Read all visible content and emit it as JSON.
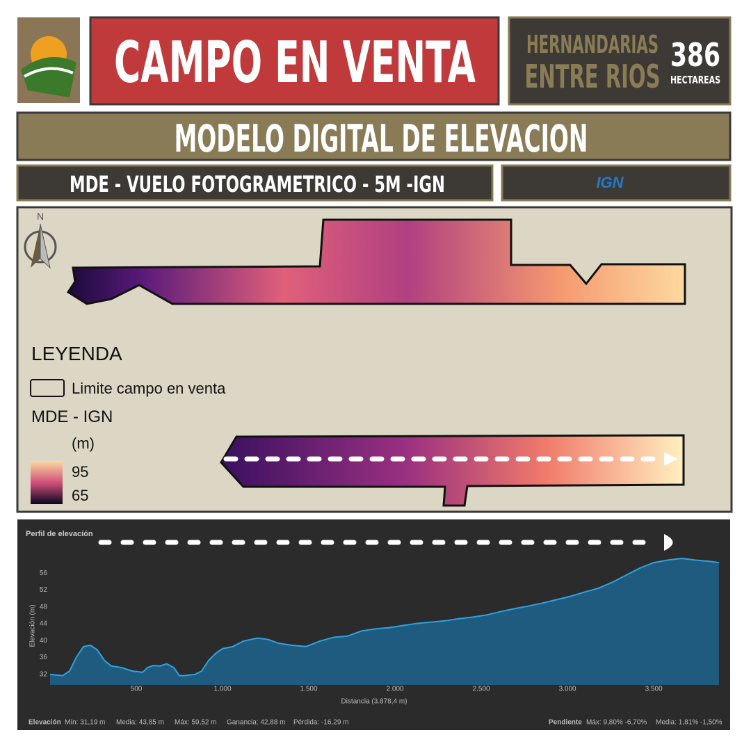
{
  "header": {
    "title": "CAMPO EN VENTA",
    "location_1": "HERNANDARIAS",
    "location_2": "ENTRE RIOS",
    "area": "386",
    "area_unit": "HECTAREAS"
  },
  "section": {
    "title": "MODELO DIGITAL DE ELEVACION",
    "source": "MDE - VUELO FOTOGRAMETRICO - 5M -IGN",
    "logo": "IGN"
  },
  "map": {
    "north": "N",
    "legend_title": "LEYENDA",
    "boundary_label": "Limite campo en venta",
    "layer": "MDE - IGN",
    "unit": "(m)",
    "scale_max": 95,
    "scale_min": 65
  },
  "chart_data": {
    "type": "area",
    "title": "Perfil de elevación",
    "x_label": "Distancia (3.878,4 m)",
    "y_label": "Elevación (m)",
    "x": [
      0,
      73,
      113,
      153,
      194,
      234,
      274,
      315,
      355,
      415,
      476,
      536,
      565,
      597,
      637,
      677,
      718,
      750,
      778,
      839,
      879,
      919,
      960,
      1000,
      1060,
      1121,
      1202,
      1262,
      1323,
      1403,
      1484,
      1565,
      1645,
      1726,
      1806,
      1887,
      1968,
      2048,
      2129,
      2210,
      2290,
      2371,
      2452,
      2532,
      2613,
      2694,
      2774,
      2855,
      2935,
      3016,
      3097,
      3177,
      3258,
      3339,
      3419,
      3500,
      3581,
      3661,
      3742,
      3823,
      3878
    ],
    "series": [
      {
        "name": "Elevación",
        "color": "#2ea3e0",
        "values": [
          32.0,
          31.7,
          32.8,
          36.1,
          38.6,
          38.9,
          37.8,
          35.3,
          34.0,
          33.6,
          32.8,
          32.5,
          33.6,
          34.1,
          34.0,
          34.5,
          33.6,
          31.7,
          31.7,
          32.0,
          32.8,
          35.3,
          37.0,
          38.1,
          38.6,
          39.9,
          40.6,
          40.3,
          39.4,
          38.9,
          38.6,
          39.9,
          40.8,
          41.1,
          42.3,
          42.8,
          43.1,
          43.6,
          44.1,
          44.4,
          44.7,
          45.2,
          45.6,
          46.1,
          46.9,
          47.6,
          48.2,
          48.9,
          49.7,
          50.5,
          51.5,
          52.4,
          53.8,
          55.5,
          57.2,
          58.5,
          59.1,
          59.5,
          59.1,
          58.8,
          58.5
        ]
      }
    ],
    "area_color": "#1f5b7f",
    "xlim": [
      0,
      3878.4
    ],
    "ylim": [
      29.5,
      60
    ],
    "xticks": [
      500,
      {
        "value": 1000,
        "label": "1.000"
      },
      {
        "value": 1500,
        "label": "1.500"
      },
      {
        "value": 2000,
        "label": "2.000"
      },
      {
        "value": 2500,
        "label": "2.500"
      },
      {
        "value": 3000,
        "label": "3.000"
      },
      {
        "value": 3500,
        "label": "3.500"
      }
    ],
    "yticks": [
      32,
      36,
      40,
      44,
      48,
      52,
      56
    ],
    "stats": {
      "elev_label": "Elevación",
      "min": "Mín: 31,19 m",
      "mean": "Media: 43,85 m",
      "max": "Máx: 59,52 m",
      "gain": "Ganancia: 42,88 m",
      "loss": "Pérdida: -16,29 m",
      "slope_label": "Pendiente",
      "slope_max": "Máx: 9,80% -6,70%",
      "slope_mean": "Media: 1,81% -1,50%"
    }
  }
}
